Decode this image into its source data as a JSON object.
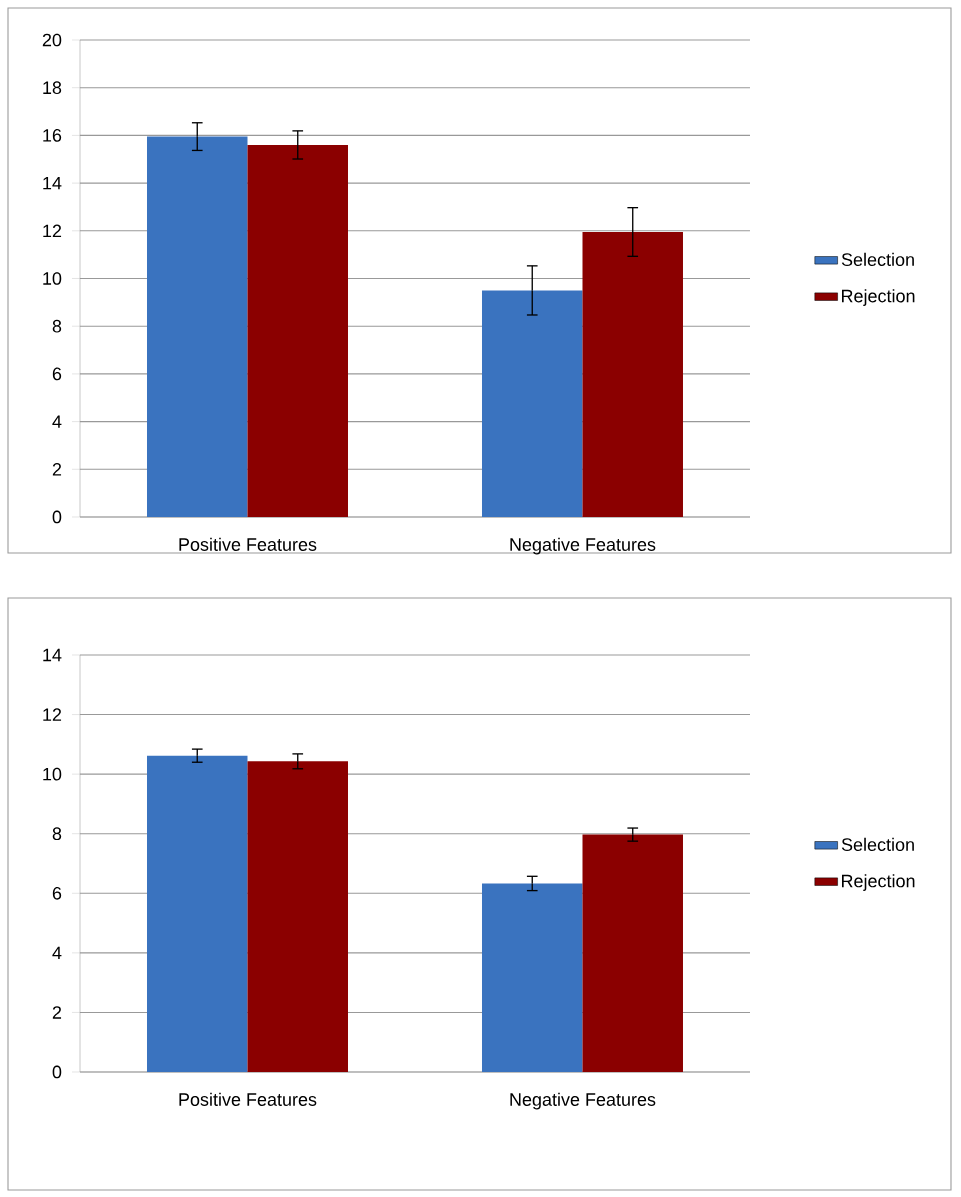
{
  "chart_data": [
    {
      "type": "bar",
      "categories": [
        "Positive Features",
        "Negative Features"
      ],
      "series": [
        {
          "name": "Selection",
          "color": "#3a73bf",
          "values": [
            15.95,
            9.5
          ],
          "errors": [
            0.58,
            1.03
          ]
        },
        {
          "name": "Rejection",
          "color": "#8b0000",
          "values": [
            15.6,
            11.95
          ],
          "errors": [
            0.59,
            1.02
          ]
        }
      ],
      "ylim": [
        0,
        20
      ],
      "yticks": [
        0,
        2,
        4,
        6,
        8,
        10,
        12,
        14,
        16,
        18,
        20
      ],
      "grid": "y",
      "legend": "right"
    },
    {
      "type": "bar",
      "categories": [
        "Positive Features",
        "Negative Features"
      ],
      "series": [
        {
          "name": "Selection",
          "color": "#3a73bf",
          "values": [
            10.62,
            6.33
          ],
          "errors": [
            0.22,
            0.24
          ]
        },
        {
          "name": "Rejection",
          "color": "#8b0000",
          "values": [
            10.43,
            7.97
          ],
          "errors": [
            0.25,
            0.22
          ]
        }
      ],
      "ylim": [
        0,
        14
      ],
      "yticks": [
        0,
        2,
        4,
        6,
        8,
        10,
        12,
        14
      ],
      "grid": "y",
      "legend": "right"
    }
  ]
}
